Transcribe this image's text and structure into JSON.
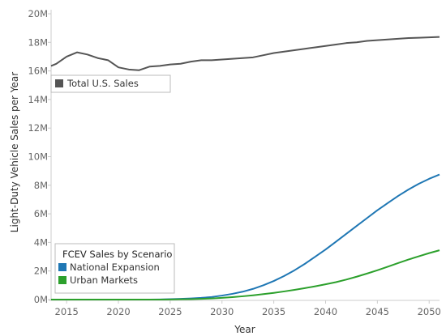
{
  "chart_data": {
    "type": "line",
    "xlabel": "Year",
    "ylabel": "Light-Duty Vehicle Sales per Year",
    "xlim": [
      2013.5,
      2051
    ],
    "ylim": [
      0,
      20
    ],
    "y_unit_suffix": "M",
    "x_ticks": [
      2015,
      2020,
      2025,
      2030,
      2035,
      2040,
      2045,
      2050
    ],
    "y_ticks": [
      0,
      2,
      4,
      6,
      8,
      10,
      12,
      14,
      16,
      18,
      20
    ],
    "grid": false,
    "legends": [
      {
        "title": "",
        "placement": "upper-left",
        "entries": [
          {
            "label": "Total U.S. Sales",
            "color": "#555555"
          }
        ]
      },
      {
        "title": "FCEV Sales by Scenario",
        "placement": "lower-left",
        "entries": [
          {
            "label": "National Expansion",
            "color": "#1f77b4"
          },
          {
            "label": "Urban Markets",
            "color": "#2ca02c"
          }
        ]
      }
    ],
    "x": [
      2013.5,
      2014,
      2015,
      2016,
      2017,
      2018,
      2019,
      2020,
      2021,
      2022,
      2023,
      2024,
      2025,
      2026,
      2027,
      2028,
      2029,
      2030,
      2031,
      2032,
      2033,
      2034,
      2035,
      2036,
      2037,
      2038,
      2039,
      2040,
      2041,
      2042,
      2043,
      2044,
      2045,
      2046,
      2047,
      2048,
      2049,
      2050,
      2051
    ],
    "series": [
      {
        "name": "Total U.S. Sales",
        "color": "#555555",
        "values": [
          16.35,
          16.5,
          17.0,
          17.3,
          17.15,
          16.9,
          16.75,
          16.25,
          16.1,
          16.05,
          16.3,
          16.35,
          16.45,
          16.5,
          16.65,
          16.75,
          16.75,
          16.8,
          16.85,
          16.9,
          16.95,
          17.1,
          17.25,
          17.35,
          17.45,
          17.55,
          17.65,
          17.75,
          17.85,
          17.95,
          18.0,
          18.1,
          18.15,
          18.2,
          18.25,
          18.3,
          18.32,
          18.35,
          18.38
        ]
      },
      {
        "name": "National Expansion",
        "color": "#1f77b4",
        "values": [
          0,
          0,
          0,
          0,
          0,
          0,
          0,
          0,
          0,
          0,
          0,
          0.01,
          0.03,
          0.05,
          0.08,
          0.12,
          0.18,
          0.28,
          0.4,
          0.55,
          0.75,
          1.0,
          1.3,
          1.65,
          2.05,
          2.5,
          3.0,
          3.5,
          4.05,
          4.6,
          5.15,
          5.7,
          6.25,
          6.75,
          7.25,
          7.7,
          8.1,
          8.45,
          8.75
        ]
      },
      {
        "name": "Urban Markets",
        "color": "#2ca02c",
        "values": [
          0,
          0,
          0,
          0,
          0,
          0,
          0,
          0,
          0,
          0,
          0,
          0,
          0.01,
          0.02,
          0.03,
          0.05,
          0.08,
          0.12,
          0.17,
          0.23,
          0.3,
          0.38,
          0.47,
          0.57,
          0.68,
          0.8,
          0.93,
          1.07,
          1.22,
          1.4,
          1.6,
          1.82,
          2.05,
          2.3,
          2.55,
          2.8,
          3.03,
          3.25,
          3.45
        ]
      }
    ]
  }
}
